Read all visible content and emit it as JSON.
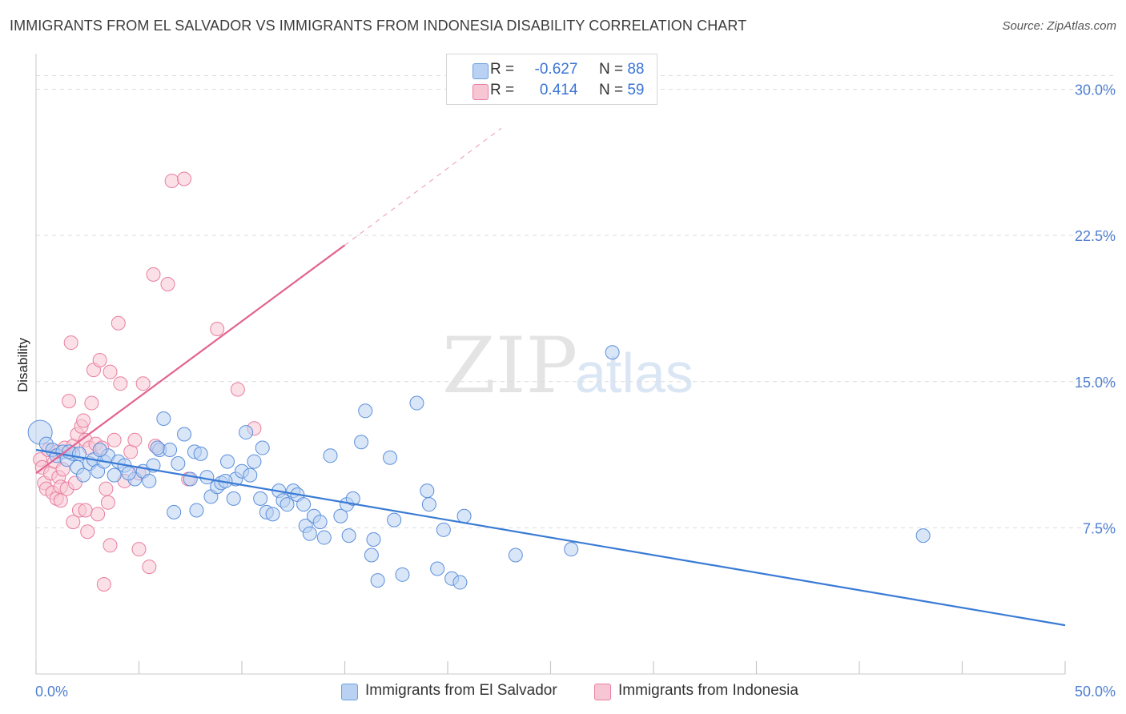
{
  "title": "IMMIGRANTS FROM EL SALVADOR VS IMMIGRANTS FROM INDONESIA DISABILITY CORRELATION CHART",
  "source": "Source: ZipAtlas.com",
  "watermark": {
    "zip": "ZIP",
    "atlas": "atlas"
  },
  "legend": {
    "rows": [
      {
        "r_label": "R =",
        "r_value": "-0.627",
        "n_label": "N =",
        "n_value": "88",
        "color": "#6f9fe0",
        "fill": "#b9d2f3"
      },
      {
        "r_label": "R =",
        "r_value": "0.414",
        "n_label": "N =",
        "n_value": "59",
        "color": "#e87fa0",
        "fill": "#f7c6d4"
      }
    ]
  },
  "colors": {
    "blue": "#3a7bd5",
    "blue_fill": "#b9d2f3",
    "pink": "#e26390",
    "pink_fill": "#f7c6d4",
    "grid": "#dcdcdc",
    "tick_text": "#4f7fd0"
  },
  "chart_data": {
    "type": "scatter",
    "title": "IMMIGRANTS FROM EL SALVADOR VS IMMIGRANTS FROM INDONESIA DISABILITY CORRELATION CHART",
    "xlabel": "",
    "ylabel": "Disability",
    "xlim": [
      0,
      50
    ],
    "ylim": [
      0,
      31.5
    ],
    "x_tick_labels": [
      "0.0%",
      "50.0%"
    ],
    "y_ticks": [
      7.5,
      15.0,
      22.5,
      30.0
    ],
    "y_tick_labels": [
      "7.5%",
      "15.0%",
      "22.5%",
      "30.0%"
    ],
    "grid": "horizontal dashed",
    "legend_position": "top-center",
    "series": [
      {
        "name": "Immigrants from El Salvador",
        "R": -0.627,
        "N": 88,
        "trend": {
          "x": [
            0,
            50
          ],
          "y": [
            11.5,
            2.5
          ]
        },
        "points": [
          [
            0.2,
            12.4
          ],
          [
            0.5,
            11.8
          ],
          [
            0.8,
            11.5
          ],
          [
            1.0,
            11.2
          ],
          [
            1.3,
            11.4
          ],
          [
            1.5,
            11.0
          ],
          [
            1.8,
            11.3
          ],
          [
            2.0,
            10.6
          ],
          [
            2.3,
            10.2
          ],
          [
            2.6,
            10.8
          ],
          [
            2.8,
            11.0
          ],
          [
            3.0,
            10.4
          ],
          [
            3.3,
            10.9
          ],
          [
            3.5,
            11.2
          ],
          [
            3.8,
            10.2
          ],
          [
            4.0,
            10.9
          ],
          [
            4.3,
            10.7
          ],
          [
            4.8,
            10.0
          ],
          [
            5.2,
            10.4
          ],
          [
            5.5,
            9.9
          ],
          [
            5.7,
            10.7
          ],
          [
            6.2,
            13.1
          ],
          [
            6.0,
            11.5
          ],
          [
            6.5,
            11.5
          ],
          [
            6.7,
            8.3
          ],
          [
            6.9,
            10.8
          ],
          [
            7.2,
            12.3
          ],
          [
            7.5,
            10.0
          ],
          [
            7.7,
            11.4
          ],
          [
            7.8,
            8.4
          ],
          [
            8.3,
            10.1
          ],
          [
            8.5,
            9.1
          ],
          [
            8.8,
            9.6
          ],
          [
            9.0,
            9.8
          ],
          [
            9.3,
            10.9
          ],
          [
            9.6,
            9.0
          ],
          [
            9.7,
            10.0
          ],
          [
            10.0,
            10.4
          ],
          [
            10.2,
            12.4
          ],
          [
            10.4,
            10.2
          ],
          [
            10.6,
            10.9
          ],
          [
            10.9,
            9.0
          ],
          [
            11.0,
            11.6
          ],
          [
            11.2,
            8.3
          ],
          [
            11.5,
            8.2
          ],
          [
            11.8,
            9.4
          ],
          [
            12.0,
            8.9
          ],
          [
            12.2,
            8.7
          ],
          [
            12.5,
            9.4
          ],
          [
            12.7,
            9.2
          ],
          [
            13.0,
            8.7
          ],
          [
            13.1,
            7.6
          ],
          [
            13.3,
            7.2
          ],
          [
            13.5,
            8.1
          ],
          [
            13.8,
            7.8
          ],
          [
            14.0,
            7.0
          ],
          [
            14.3,
            11.2
          ],
          [
            14.8,
            8.1
          ],
          [
            15.1,
            8.7
          ],
          [
            15.2,
            7.1
          ],
          [
            15.4,
            9.0
          ],
          [
            15.8,
            11.9
          ],
          [
            16.0,
            13.5
          ],
          [
            16.3,
            6.1
          ],
          [
            16.4,
            6.9
          ],
          [
            16.6,
            4.8
          ],
          [
            17.2,
            11.1
          ],
          [
            17.4,
            7.9
          ],
          [
            17.8,
            5.1
          ],
          [
            18.5,
            13.9
          ],
          [
            19.0,
            9.4
          ],
          [
            19.1,
            8.7
          ],
          [
            19.5,
            5.4
          ],
          [
            19.8,
            7.4
          ],
          [
            20.2,
            4.9
          ],
          [
            20.6,
            4.7
          ],
          [
            20.8,
            8.1
          ],
          [
            23.3,
            6.1
          ],
          [
            26.0,
            6.4
          ],
          [
            28.0,
            16.5
          ],
          [
            43.1,
            7.1
          ],
          [
            1.6,
            11.4
          ],
          [
            2.1,
            11.3
          ],
          [
            4.5,
            10.3
          ],
          [
            5.9,
            11.6
          ],
          [
            8.0,
            11.3
          ],
          [
            3.1,
            11.5
          ],
          [
            9.2,
            9.9
          ]
        ]
      },
      {
        "name": "Immigrants from Indonesia",
        "R": 0.414,
        "N": 59,
        "trend": {
          "x": [
            0,
            15.0
          ],
          "y": [
            10.3,
            22.0
          ]
        },
        "trend_extension": {
          "x": [
            15.0,
            22.6
          ],
          "y": [
            22.0,
            28.0
          ]
        },
        "points": [
          [
            0.2,
            11.0
          ],
          [
            0.3,
            10.6
          ],
          [
            0.4,
            9.8
          ],
          [
            0.5,
            9.5
          ],
          [
            0.6,
            11.5
          ],
          [
            0.7,
            10.3
          ],
          [
            0.8,
            9.3
          ],
          [
            0.9,
            10.9
          ],
          [
            1.0,
            9.0
          ],
          [
            1.0,
            11.4
          ],
          [
            1.1,
            10.1
          ],
          [
            1.2,
            8.9
          ],
          [
            1.2,
            9.6
          ],
          [
            1.3,
            10.5
          ],
          [
            1.4,
            11.6
          ],
          [
            1.5,
            9.5
          ],
          [
            1.6,
            14.0
          ],
          [
            1.7,
            17.0
          ],
          [
            1.8,
            11.7
          ],
          [
            1.8,
            7.8
          ],
          [
            1.9,
            9.8
          ],
          [
            2.0,
            12.3
          ],
          [
            2.1,
            8.4
          ],
          [
            2.2,
            12.7
          ],
          [
            2.3,
            13.0
          ],
          [
            2.4,
            12.0
          ],
          [
            2.4,
            8.4
          ],
          [
            2.5,
            7.3
          ],
          [
            2.6,
            11.6
          ],
          [
            2.7,
            13.9
          ],
          [
            2.8,
            15.6
          ],
          [
            2.9,
            11.8
          ],
          [
            3.0,
            8.2
          ],
          [
            3.1,
            16.1
          ],
          [
            3.2,
            11.6
          ],
          [
            3.3,
            4.6
          ],
          [
            3.4,
            9.5
          ],
          [
            3.5,
            8.8
          ],
          [
            3.6,
            15.5
          ],
          [
            3.6,
            6.6
          ],
          [
            3.8,
            12.0
          ],
          [
            4.0,
            18.0
          ],
          [
            4.1,
            14.9
          ],
          [
            4.3,
            9.9
          ],
          [
            4.6,
            11.4
          ],
          [
            4.8,
            12.0
          ],
          [
            5.0,
            10.3
          ],
          [
            5.0,
            6.4
          ],
          [
            5.2,
            14.9
          ],
          [
            5.5,
            5.5
          ],
          [
            5.7,
            20.5
          ],
          [
            5.8,
            11.7
          ],
          [
            6.4,
            20.0
          ],
          [
            6.6,
            25.3
          ],
          [
            7.2,
            25.4
          ],
          [
            7.4,
            10.0
          ],
          [
            8.8,
            17.7
          ],
          [
            9.8,
            14.6
          ],
          [
            10.6,
            12.6
          ]
        ]
      }
    ]
  },
  "bottom_legend": [
    {
      "label": "Immigrants from El Salvador",
      "color": "#6f9fe0",
      "fill": "#b9d2f3"
    },
    {
      "label": "Immigrants from Indonesia",
      "color": "#e87fa0",
      "fill": "#f7c6d4"
    }
  ]
}
